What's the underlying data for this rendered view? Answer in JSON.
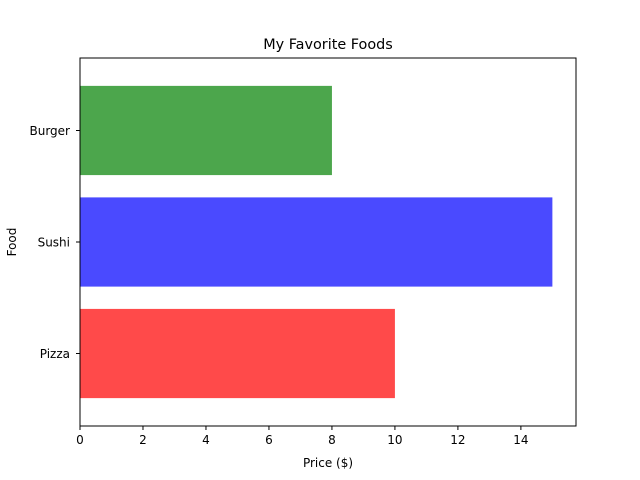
{
  "chart_data": {
    "type": "bar",
    "orientation": "horizontal",
    "title": "My Favorite Foods",
    "xlabel": "Price ($)",
    "ylabel": "Food",
    "xlim": [
      0,
      15.75
    ],
    "xticks": [
      0,
      2,
      4,
      6,
      8,
      10,
      12,
      14
    ],
    "categories": [
      "Pizza",
      "Sushi",
      "Burger"
    ],
    "values": [
      10,
      15,
      8
    ],
    "colors": [
      "#ff4a4a",
      "#4a4aff",
      "#4ca64c"
    ],
    "grid": false
  }
}
